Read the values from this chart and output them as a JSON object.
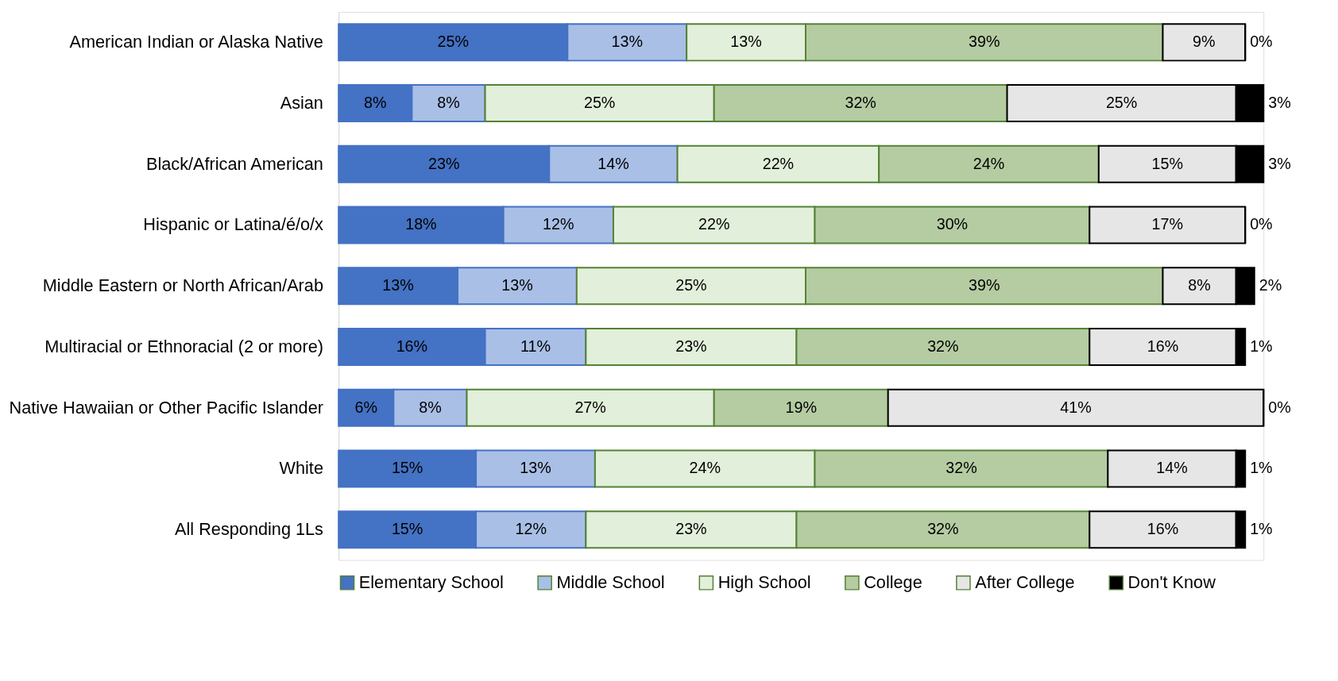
{
  "chart_data": {
    "type": "bar",
    "orientation": "horizontal",
    "stacked": true,
    "legend": "bottom",
    "tick_labels": "y",
    "categories": [
      "American Indian or Alaska Native",
      "Asian",
      "Black/African American",
      "Hispanic or Latina/é/o/x",
      "Middle Eastern or North African/Arab",
      "Multiracial or Ethnoracial (2 or more)",
      "Native Hawaiian or Other Pacific Islander",
      "White",
      "All Responding 1Ls"
    ],
    "series": [
      {
        "name": "Elementary School",
        "color": "#4472c4",
        "values": [
          25,
          8,
          23,
          18,
          13,
          16,
          6,
          15,
          15
        ],
        "value_labels": [
          "25%",
          "8%",
          "23%",
          "18%",
          "13%",
          "16%",
          "6%",
          "15%",
          "15%"
        ]
      },
      {
        "name": "Middle School",
        "color": "#a9bfe6",
        "values": [
          13,
          8,
          14,
          12,
          13,
          11,
          8,
          13,
          12
        ],
        "value_labels": [
          "13%",
          "8%",
          "14%",
          "12%",
          "13%",
          "11%",
          "8%",
          "13%",
          "12%"
        ]
      },
      {
        "name": "High School",
        "color": "#e2efda",
        "values": [
          13,
          25,
          22,
          22,
          25,
          23,
          27,
          24,
          23
        ],
        "value_labels": [
          "13%",
          "25%",
          "22%",
          "22%",
          "25%",
          "23%",
          "27%",
          "24%",
          "23%"
        ]
      },
      {
        "name": "College",
        "color": "#b5cca2",
        "values": [
          39,
          32,
          24,
          30,
          39,
          32,
          19,
          32,
          32
        ],
        "value_labels": [
          "39%",
          "32%",
          "24%",
          "30%",
          "39%",
          "32%",
          "19%",
          "32%",
          "32%"
        ]
      },
      {
        "name": "After College",
        "color": "#e6e6e6",
        "values": [
          9,
          25,
          15,
          17,
          8,
          16,
          41,
          14,
          16
        ],
        "value_labels": [
          "9%",
          "25%",
          "15%",
          "17%",
          "8%",
          "16%",
          "41%",
          "14%",
          "16%"
        ]
      },
      {
        "name": "Don't Know",
        "color": "#000000",
        "values": [
          0,
          3,
          3,
          0,
          2,
          1,
          0,
          1,
          1
        ],
        "value_labels": [
          "0%",
          "3%",
          "3%",
          "0%",
          "2%",
          "1%",
          "0%",
          "1%",
          "1%"
        ]
      }
    ]
  }
}
